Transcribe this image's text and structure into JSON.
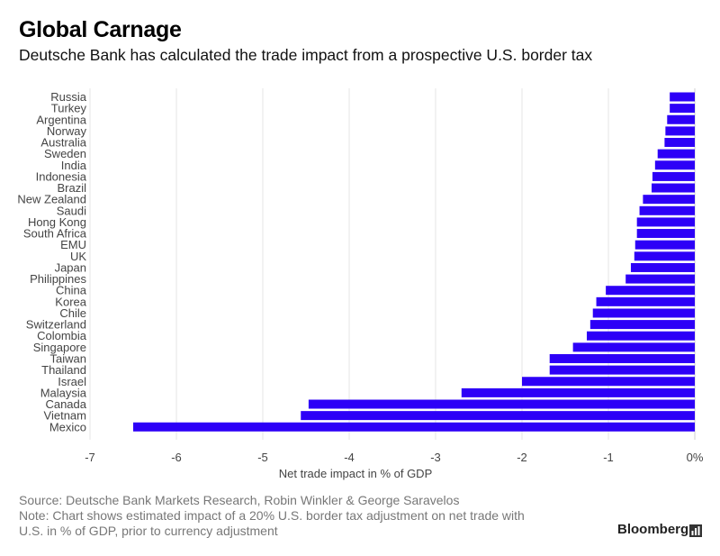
{
  "title": "Global Carnage",
  "subtitle": "Deutsche Bank has calculated the trade impact from a prospective U.S. border tax",
  "footer": {
    "source": "Source: Deutsche Bank Markets Research, Robin Winkler & George Saravelos",
    "note_line1": "Note: Chart shows estimated impact of a 20% U.S. border tax adjustment on net trade with",
    "note_line2": "U.S. in % of GDP, prior to currency adjustment"
  },
  "brand": "Bloomberg",
  "chart_data": {
    "type": "bar",
    "orientation": "horizontal",
    "title": "Global Carnage",
    "subtitle": "Deutsche Bank has calculated the trade impact from a prospective U.S. border tax",
    "xlabel": "Net trade impact in % of GDP",
    "ylabel": "",
    "xlim": [
      -7,
      0
    ],
    "x_ticks": [
      "-7",
      "-6",
      "-5",
      "-4",
      "-3",
      "-2",
      "-1",
      "0%"
    ],
    "x_tick_values": [
      -7,
      -6,
      -5,
      -4,
      -3,
      -2,
      -1,
      0
    ],
    "grid": "vertical",
    "bar_color": "#2d00f7",
    "categories": [
      "Russia",
      "Turkey",
      "Argentina",
      "Norway",
      "Australia",
      "Sweden",
      "India",
      "Indonesia",
      "Brazil",
      "New Zealand",
      "Saudi",
      "Hong Kong",
      "South Africa",
      "EMU",
      "UK",
      "Japan",
      "Philippines",
      "China",
      "Korea",
      "Chile",
      "Switzerland",
      "Colombia",
      "Singapore",
      "Taiwan",
      "Thailand",
      "Israel",
      "Malaysia",
      "Canada",
      "Vietnam",
      "Mexico"
    ],
    "values": [
      -0.29,
      -0.29,
      -0.32,
      -0.34,
      -0.35,
      -0.43,
      -0.46,
      -0.49,
      -0.5,
      -0.6,
      -0.64,
      -0.67,
      -0.67,
      -0.69,
      -0.7,
      -0.74,
      -0.8,
      -1.03,
      -1.14,
      -1.18,
      -1.21,
      -1.25,
      -1.41,
      -1.68,
      -1.68,
      -2.0,
      -2.7,
      -4.47,
      -4.56,
      -6.5
    ]
  }
}
